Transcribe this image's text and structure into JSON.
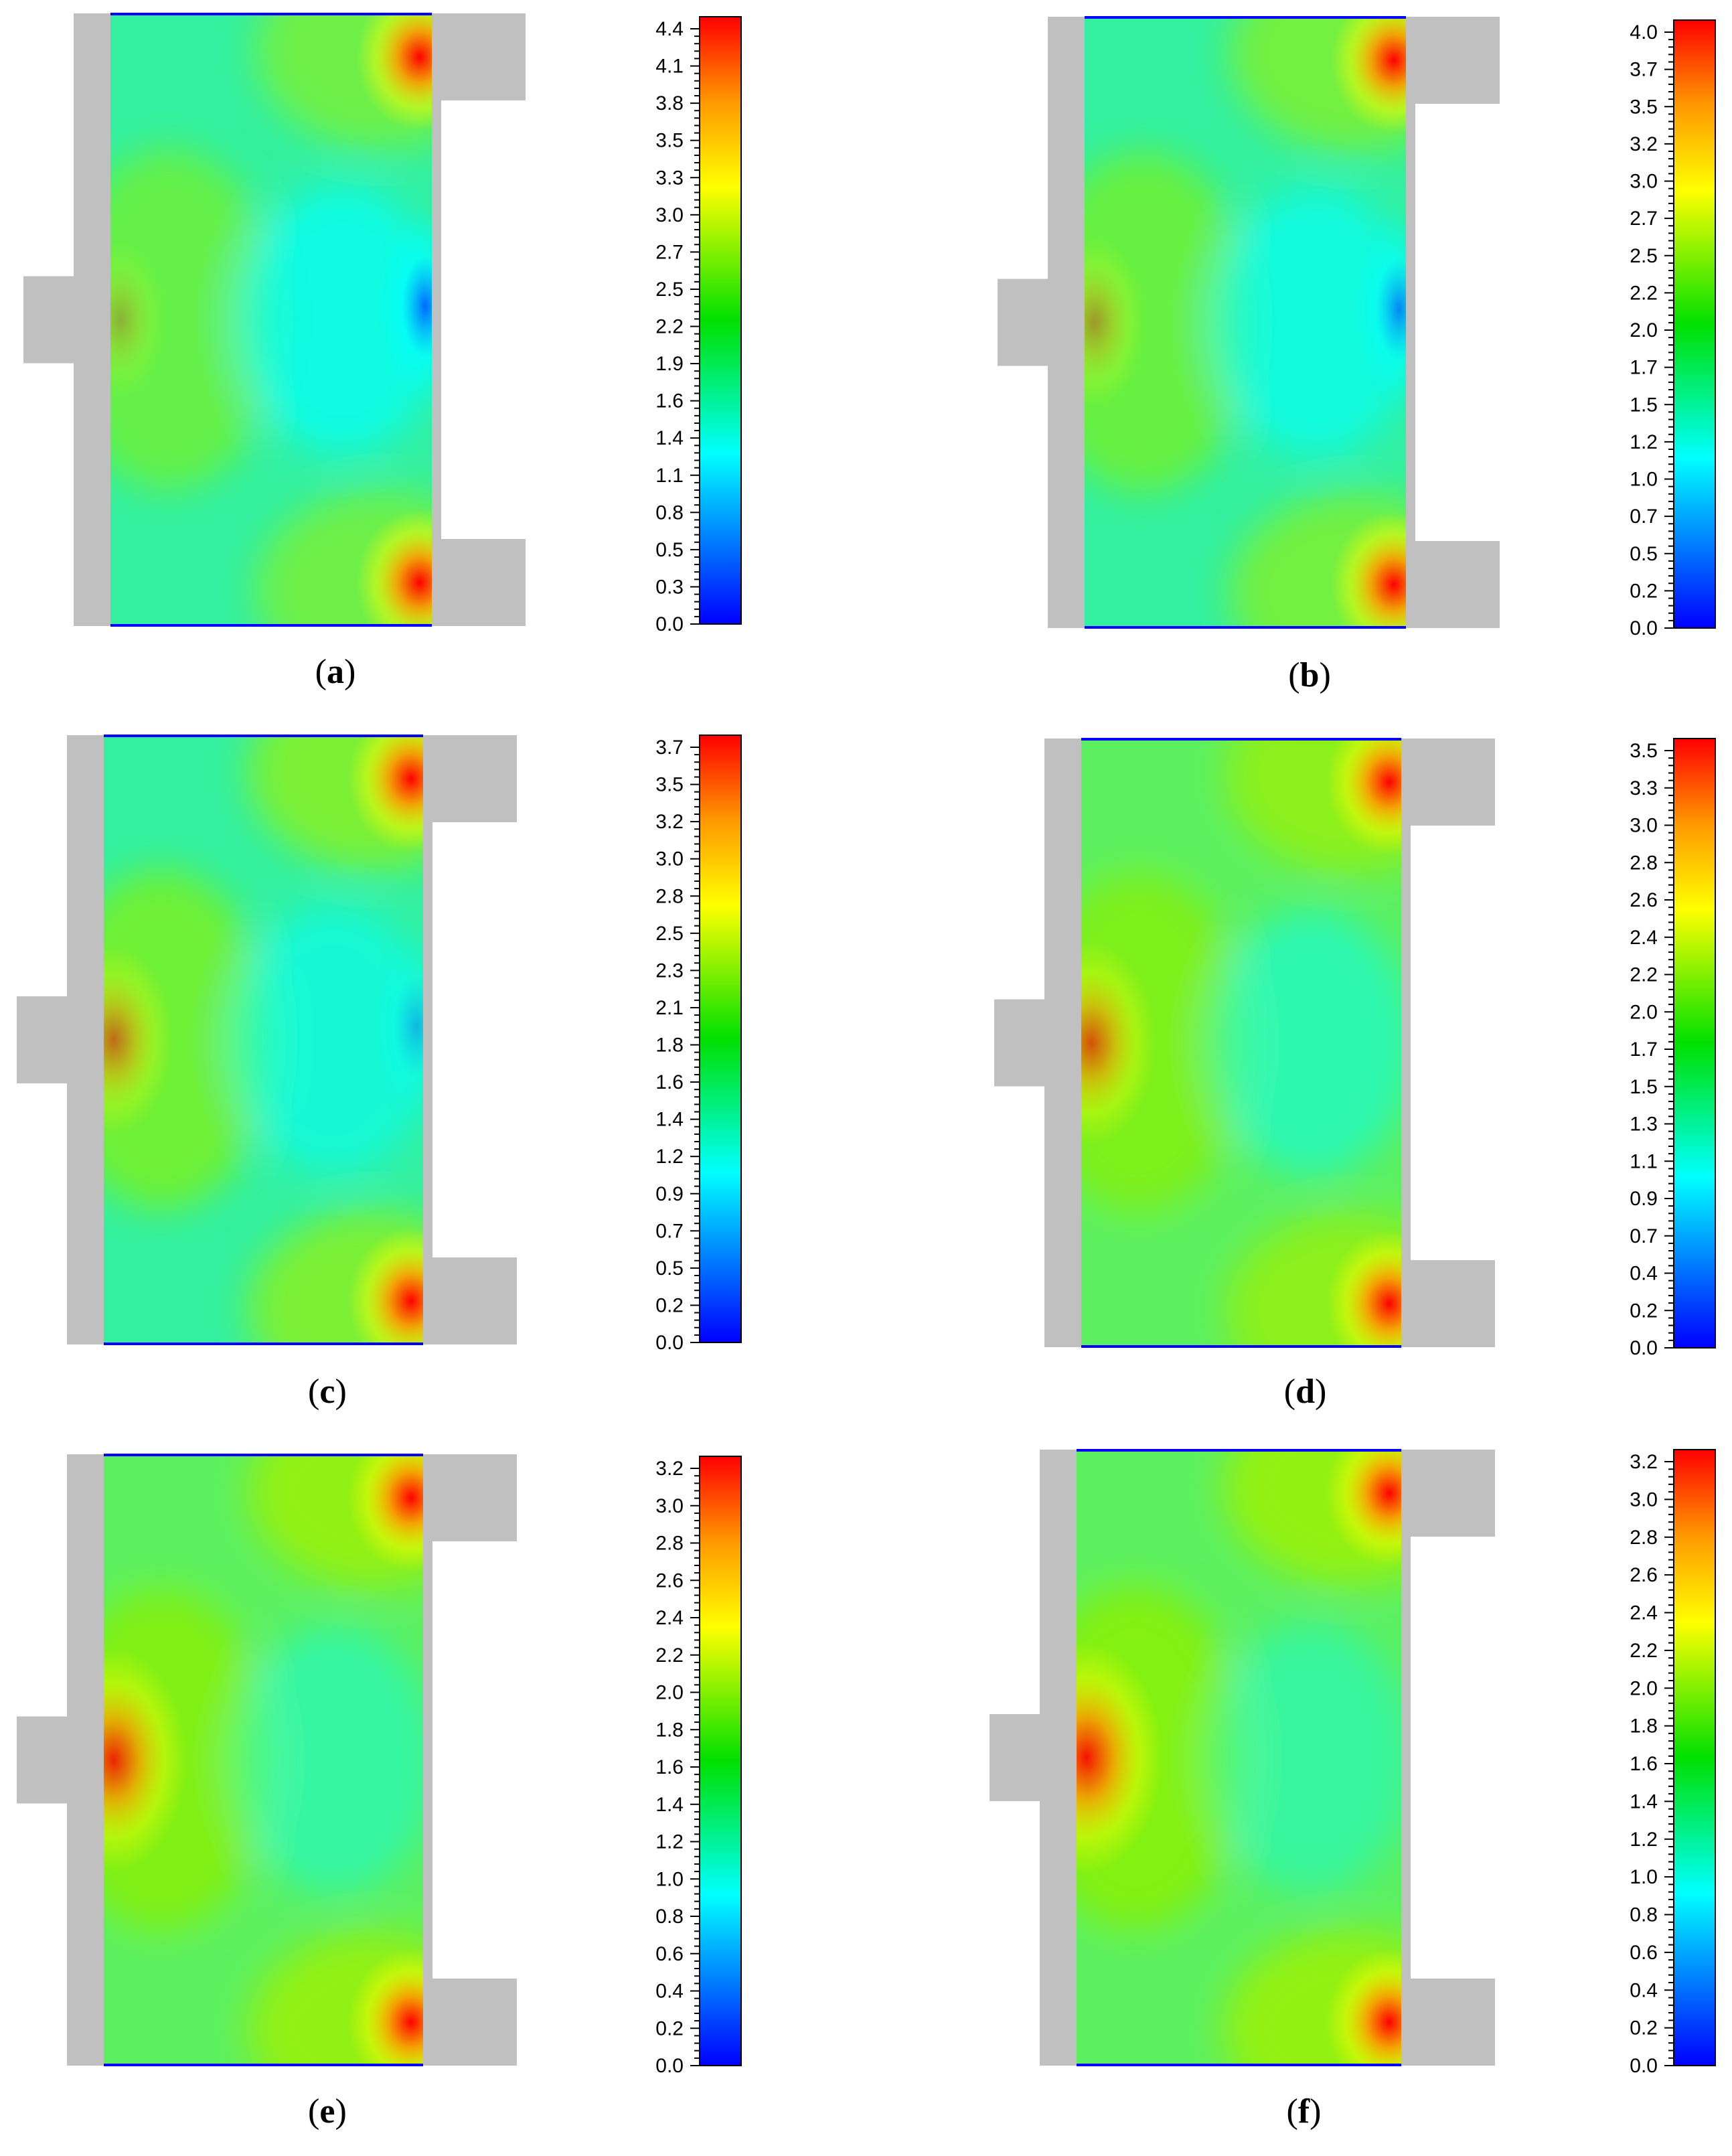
{
  "colors": {
    "gray": "#c0c0c0",
    "blue": "#0000ff",
    "cyan": "#00ffff",
    "green": "#00e000",
    "yellow": "#ffff00",
    "orange": "#ff9900",
    "red": "#ff0000"
  },
  "panels": [
    {
      "label": "a",
      "scale": {
        "ticks": [
          "0.0",
          "0.3",
          "0.5",
          "0.8",
          "1.1",
          "1.4",
          "1.6",
          "1.9",
          "2.2",
          "2.5",
          "2.7",
          "3.0",
          "3.3",
          "3.5",
          "3.8",
          "4.1",
          "4.4"
        ]
      }
    },
    {
      "label": "b",
      "scale": {
        "ticks": [
          "0.0",
          "0.2",
          "0.5",
          "0.7",
          "1.0",
          "1.2",
          "1.5",
          "1.7",
          "2.0",
          "2.2",
          "2.5",
          "2.7",
          "3.0",
          "3.2",
          "3.5",
          "3.7",
          "4.0"
        ]
      }
    },
    {
      "label": "c",
      "scale": {
        "ticks": [
          "0.0",
          "0.2",
          "0.5",
          "0.7",
          "0.9",
          "1.2",
          "1.4",
          "1.6",
          "1.8",
          "2.1",
          "2.3",
          "2.5",
          "2.8",
          "3.0",
          "3.2",
          "3.5",
          "3.7"
        ]
      }
    },
    {
      "label": "d",
      "scale": {
        "ticks": [
          "0.0",
          "0.2",
          "0.4",
          "0.7",
          "0.9",
          "1.1",
          "1.3",
          "1.5",
          "1.7",
          "2.0",
          "2.2",
          "2.4",
          "2.6",
          "2.8",
          "3.0",
          "3.3",
          "3.5"
        ]
      }
    },
    {
      "label": "e",
      "scale": {
        "ticks": [
          "0.0",
          "0.2",
          "0.4",
          "0.6",
          "0.8",
          "1.0",
          "1.2",
          "1.4",
          "1.6",
          "1.8",
          "2.0",
          "2.2",
          "2.4",
          "2.6",
          "2.8",
          "3.0",
          "3.2"
        ]
      }
    },
    {
      "label": "f",
      "scale": {
        "ticks": [
          "0.0",
          "0.2",
          "0.4",
          "0.6",
          "0.8",
          "1.0",
          "1.2",
          "1.4",
          "1.6",
          "1.8",
          "2.0",
          "2.2",
          "2.4",
          "2.6",
          "2.8",
          "3.0",
          "3.2"
        ]
      }
    }
  ]
}
